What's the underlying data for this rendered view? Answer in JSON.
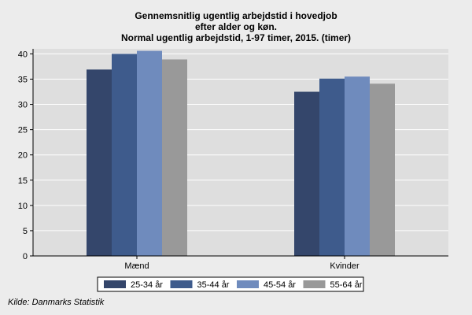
{
  "chart_data": {
    "type": "bar",
    "title_lines": [
      "Gennemsnitlig ugentlig arbejdstid i hovedjob",
      "efter alder og køn.",
      "Normal ugentlig arbejdstid, 1-97 timer, 2015. (timer)"
    ],
    "categories": [
      "Mænd",
      "Kvinder"
    ],
    "series": [
      {
        "name": "25-34 år",
        "color": "#34466b",
        "values": [
          36.9,
          32.5
        ]
      },
      {
        "name": "35-44 år",
        "color": "#3e5b8c",
        "values": [
          40.0,
          35.1
        ]
      },
      {
        "name": "45-54 år",
        "color": "#6f8bbd",
        "values": [
          40.6,
          35.5
        ]
      },
      {
        "name": "55-64 år",
        "color": "#999999",
        "values": [
          38.9,
          34.1
        ]
      }
    ],
    "yticks": [
      0,
      5,
      10,
      15,
      20,
      25,
      30,
      35,
      40
    ],
    "ylim": [
      0,
      41
    ],
    "grid": true,
    "legend_position": "bottom",
    "plot_background": "#dedede"
  },
  "source": "Kilde: Danmarks Statistik"
}
